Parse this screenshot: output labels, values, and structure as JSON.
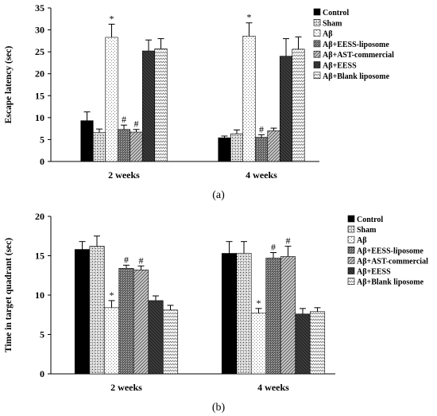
{
  "chart_data": [
    {
      "type": "bar",
      "caption": "(a)",
      "ylabel": "Escape latency (sec)",
      "ylim": [
        0,
        35
      ],
      "yticks": [
        0,
        5,
        10,
        15,
        20,
        25,
        30,
        35
      ],
      "categories": [
        "2 weeks",
        "4 weeks"
      ],
      "legend": "right",
      "series": [
        {
          "name": "Control",
          "values": [
            9.3,
            5.4
          ],
          "errors": [
            2.0,
            0.4
          ],
          "annotations": [
            "",
            ""
          ]
        },
        {
          "name": "Sham",
          "values": [
            6.6,
            6.3
          ],
          "errors": [
            0.8,
            0.9
          ],
          "annotations": [
            "",
            ""
          ]
        },
        {
          "name": "Aβ",
          "values": [
            28.3,
            28.6
          ],
          "errors": [
            3.0,
            3.0
          ],
          "annotations": [
            "*",
            "*"
          ]
        },
        {
          "name": "Aβ+EESS-liposome",
          "values": [
            7.3,
            5.5
          ],
          "errors": [
            1.0,
            0.6
          ],
          "annotations": [
            "#",
            "#"
          ]
        },
        {
          "name": "Aβ+AST-commercial",
          "values": [
            6.7,
            7.0
          ],
          "errors": [
            0.6,
            0.6
          ],
          "annotations": [
            "#",
            ""
          ]
        },
        {
          "name": "Aβ+EESS",
          "values": [
            25.2,
            24.0
          ],
          "errors": [
            2.5,
            4.0
          ],
          "annotations": [
            "",
            ""
          ]
        },
        {
          "name": "Aβ+Blank liposome",
          "values": [
            25.7,
            25.6
          ],
          "errors": [
            2.3,
            2.8
          ],
          "annotations": [
            "",
            ""
          ]
        }
      ]
    },
    {
      "type": "bar",
      "caption": "(b)",
      "ylabel": "Time in target quadrant (sec)",
      "ylim": [
        0,
        20
      ],
      "yticks": [
        0,
        5,
        10,
        15,
        20
      ],
      "categories": [
        "2 weeks",
        "4 weeks"
      ],
      "legend": "right",
      "series": [
        {
          "name": "Control",
          "values": [
            15.8,
            15.3
          ],
          "errors": [
            1.0,
            1.5
          ],
          "annotations": [
            "",
            ""
          ]
        },
        {
          "name": "Sham",
          "values": [
            16.2,
            15.3
          ],
          "errors": [
            1.3,
            1.5
          ],
          "annotations": [
            "",
            ""
          ]
        },
        {
          "name": "Aβ",
          "values": [
            8.4,
            7.7
          ],
          "errors": [
            0.9,
            0.6
          ],
          "annotations": [
            "*",
            "*"
          ]
        },
        {
          "name": "Aβ+EESS-liposome",
          "values": [
            13.4,
            14.7
          ],
          "errors": [
            0.4,
            0.7
          ],
          "annotations": [
            "#",
            "#"
          ]
        },
        {
          "name": "Aβ+AST-commercial",
          "values": [
            13.2,
            14.9
          ],
          "errors": [
            0.5,
            1.3
          ],
          "annotations": [
            "#",
            "#"
          ]
        },
        {
          "name": "Aβ+EESS",
          "values": [
            9.3,
            7.6
          ],
          "errors": [
            0.6,
            0.7
          ],
          "annotations": [
            "",
            ""
          ]
        },
        {
          "name": "Aβ+Blank liposome",
          "values": [
            8.1,
            7.9
          ],
          "errors": [
            0.6,
            0.5
          ],
          "annotations": [
            "",
            ""
          ]
        }
      ]
    }
  ]
}
